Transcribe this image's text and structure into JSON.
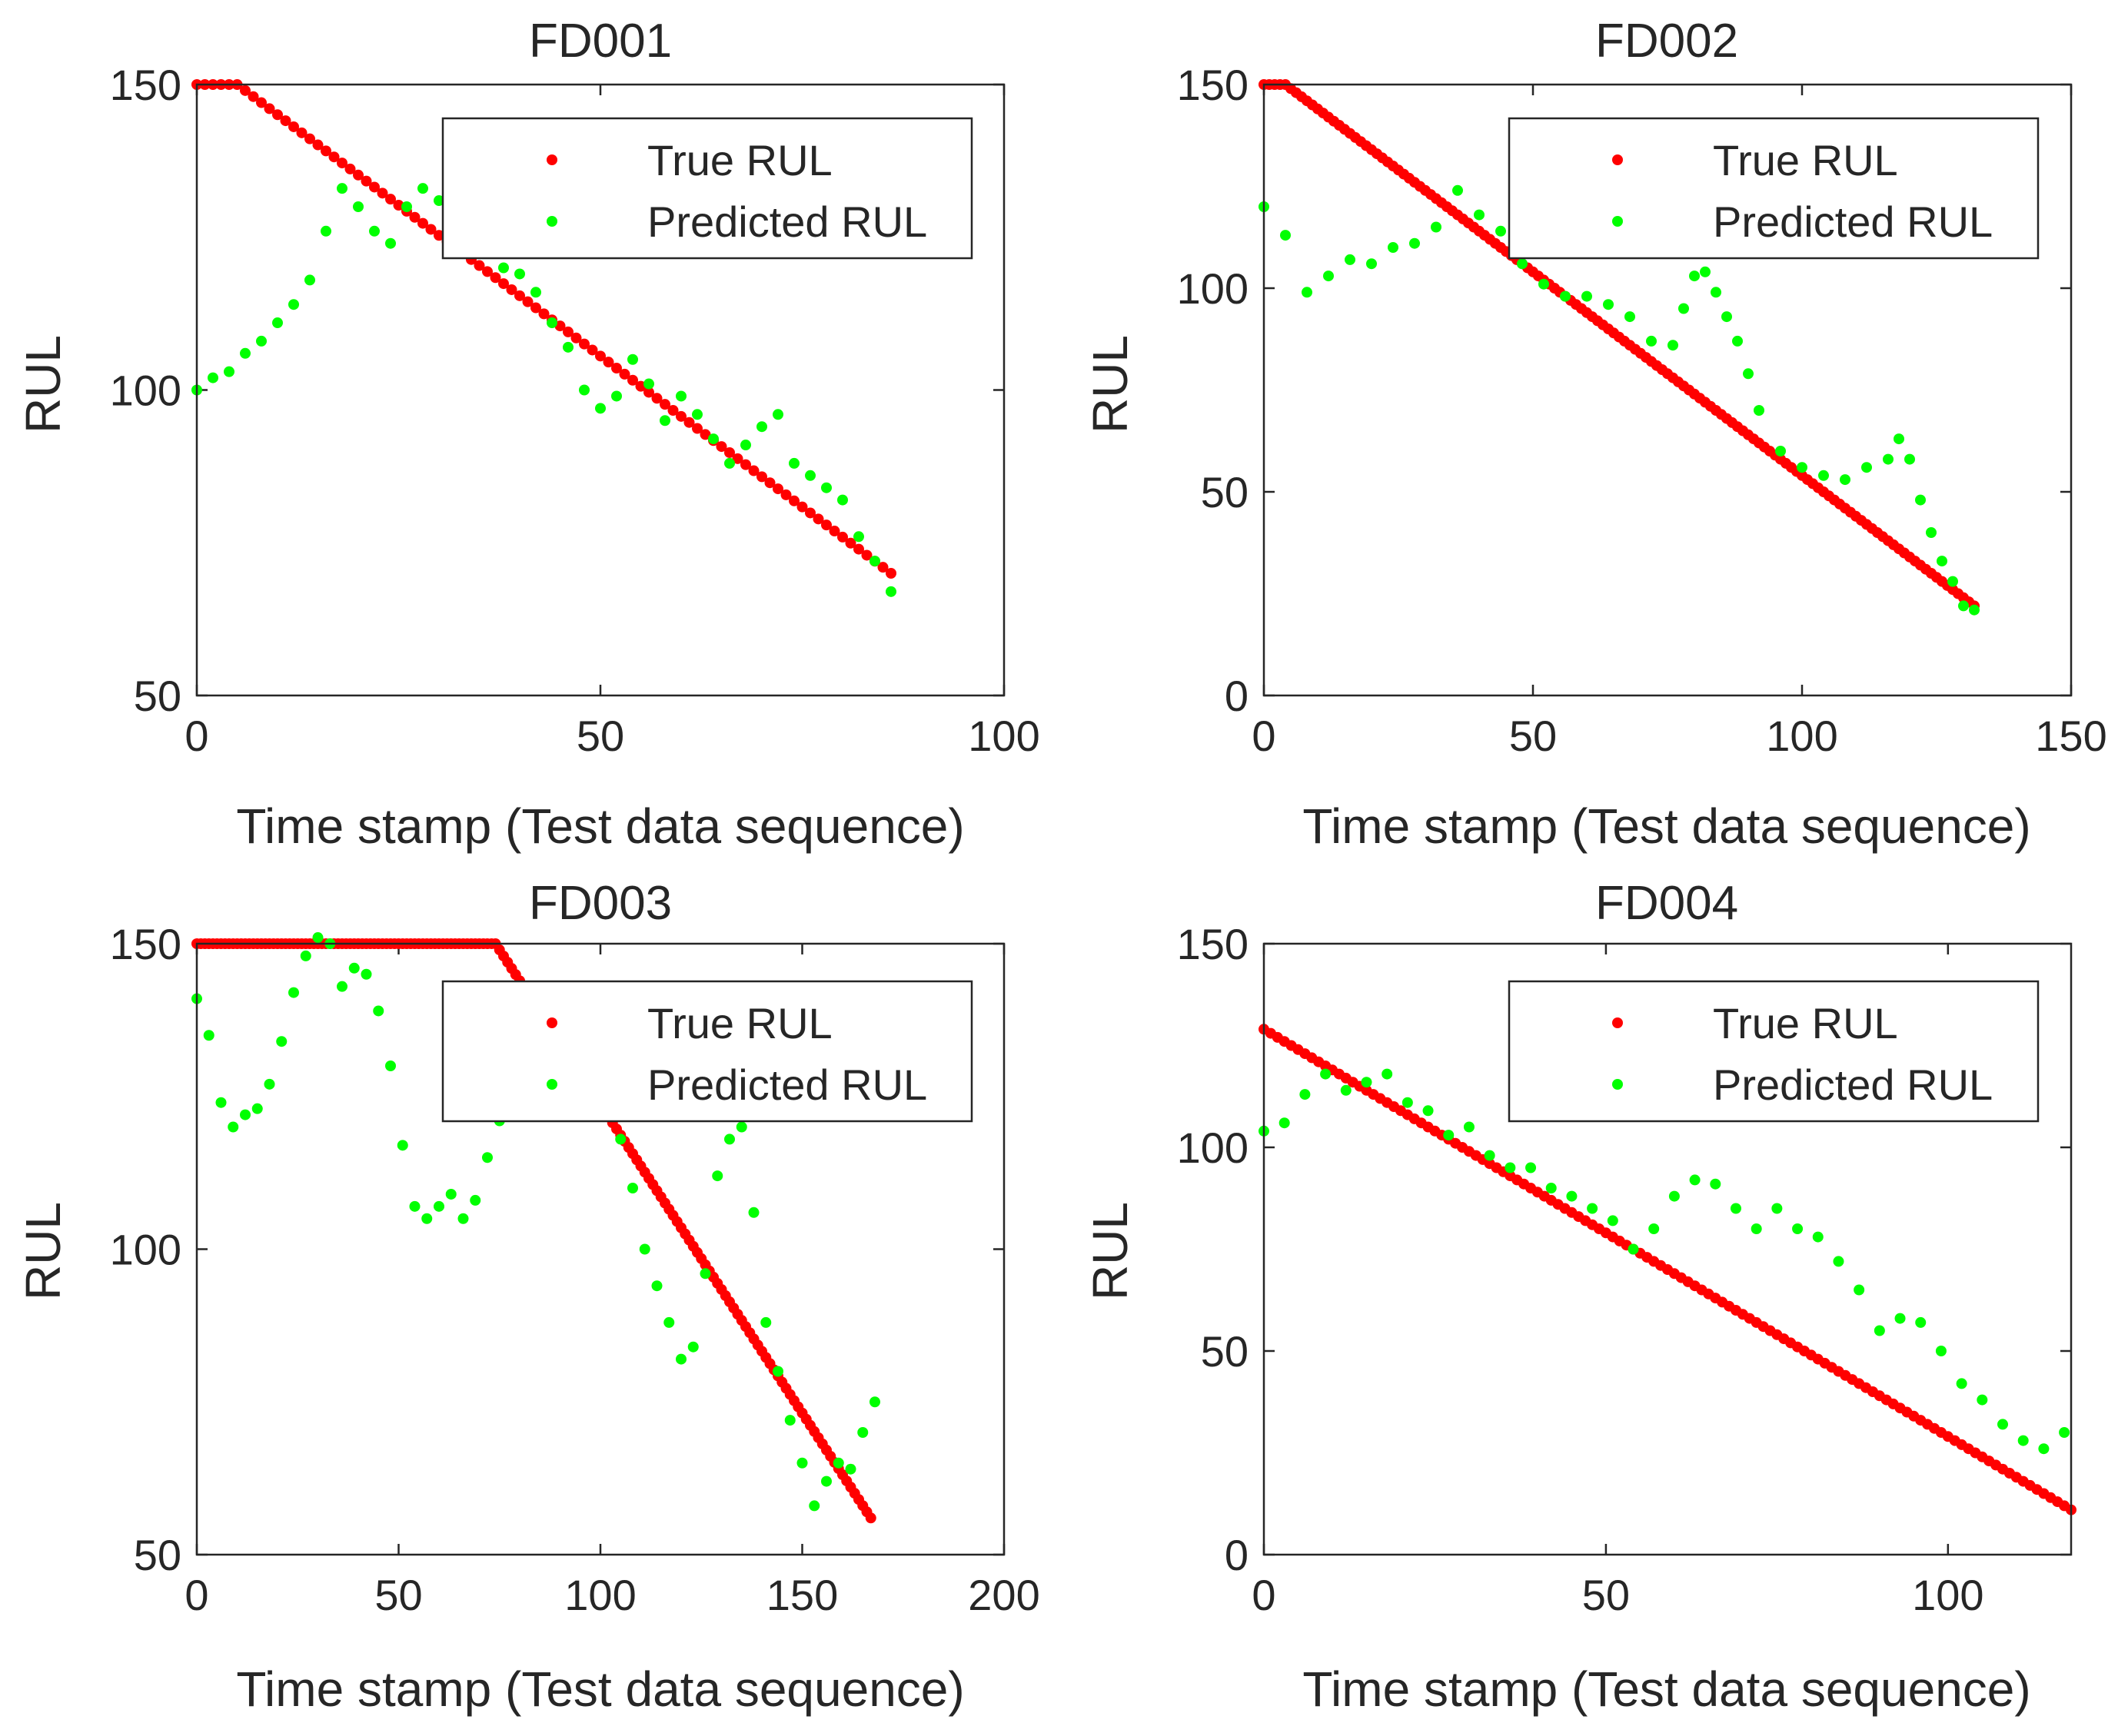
{
  "colors": {
    "true_rul": "#ff0000",
    "pred_rul": "#00ff00",
    "axis": "#262626"
  },
  "chart_data": [
    {
      "type": "scatter",
      "title": "FD001",
      "xlabel": "Time stamp (Test data sequence)",
      "ylabel": "RUL",
      "xlim": [
        0,
        100
      ],
      "ylim": [
        50,
        150
      ],
      "xticks": [
        0,
        50,
        100
      ],
      "yticks": [
        50,
        100,
        150
      ],
      "legend": {
        "entries": [
          "True RUL",
          "Predicted RUL"
        ],
        "location": "top-right"
      },
      "true_rul": {
        "x_end": 86,
        "cap": 150,
        "knee": 5,
        "end_value": 70
      },
      "predicted_rul": {
        "x": [
          0,
          2,
          4,
          6,
          8,
          10,
          12,
          14,
          16,
          18,
          20,
          22,
          24,
          26,
          28,
          30,
          32,
          34,
          36,
          38,
          40,
          42,
          44,
          46,
          48,
          50,
          52,
          54,
          56,
          58,
          60,
          62,
          64,
          66,
          68,
          70,
          72,
          74,
          76,
          78,
          80,
          82,
          84,
          86
        ],
        "y": [
          100,
          102,
          103,
          106,
          108,
          111,
          114,
          118,
          126,
          133,
          130,
          126,
          124,
          130,
          133,
          131,
          128,
          125,
          124,
          120,
          119,
          116,
          111,
          107,
          100,
          97,
          99,
          105,
          101,
          95,
          99,
          96,
          92,
          88,
          91,
          94,
          96,
          88,
          86,
          84,
          82,
          76,
          72,
          67
        ]
      }
    },
    {
      "type": "scatter",
      "title": "FD002",
      "xlabel": "Time stamp (Test data sequence)",
      "ylabel": "RUL",
      "xlim": [
        0,
        150
      ],
      "ylim": [
        0,
        150
      ],
      "xticks": [
        0,
        50,
        100,
        150
      ],
      "yticks": [
        0,
        50,
        100,
        150
      ],
      "legend": {
        "entries": [
          "True RUL",
          "Predicted RUL"
        ],
        "location": "top-right"
      },
      "true_rul": {
        "x_end": 132,
        "cap": 150,
        "knee": 4,
        "end_value": 22
      },
      "predicted_rul": {
        "x": [
          0,
          4,
          8,
          12,
          16,
          20,
          24,
          28,
          32,
          36,
          40,
          44,
          48,
          52,
          56,
          60,
          64,
          68,
          72,
          76,
          78,
          80,
          82,
          84,
          86,
          88,
          90,
          92,
          96,
          100,
          104,
          108,
          112,
          116,
          118,
          120,
          122,
          124,
          126,
          128,
          130,
          132
        ],
        "y": [
          120,
          113,
          99,
          103,
          107,
          106,
          110,
          111,
          115,
          124,
          118,
          114,
          106,
          101,
          98,
          98,
          96,
          93,
          87,
          86,
          95,
          103,
          104,
          99,
          93,
          87,
          79,
          70,
          60,
          56,
          54,
          53,
          56,
          58,
          63,
          58,
          48,
          40,
          33,
          28,
          22,
          21
        ]
      }
    },
    {
      "type": "scatter",
      "title": "FD003",
      "xlabel": "Time stamp (Test data sequence)",
      "ylabel": "RUL",
      "xlim": [
        0,
        200
      ],
      "ylim": [
        50,
        150
      ],
      "xticks": [
        0,
        50,
        100,
        150,
        200
      ],
      "yticks": [
        50,
        100,
        150
      ],
      "legend": {
        "entries": [
          "True RUL",
          "Predicted RUL"
        ],
        "location": "top-right"
      },
      "true_rul": {
        "x_end": 167,
        "cap": 150,
        "knee": 74,
        "end_value": 56
      },
      "predicted_rul": {
        "x": [
          0,
          3,
          6,
          9,
          12,
          15,
          18,
          21,
          24,
          27,
          30,
          33,
          36,
          39,
          42,
          45,
          48,
          51,
          54,
          57,
          60,
          63,
          66,
          69,
          72,
          75,
          105,
          108,
          111,
          114,
          117,
          120,
          123,
          126,
          129,
          132,
          135,
          138,
          141,
          144,
          147,
          150,
          153,
          156,
          159,
          162,
          165,
          168
        ],
        "y": [
          141,
          135,
          124,
          120,
          122,
          123,
          127,
          134,
          142,
          148,
          151,
          150,
          143,
          146,
          145,
          139,
          130,
          117,
          107,
          105,
          107,
          109,
          105,
          108,
          115,
          121,
          118,
          110,
          100,
          94,
          88,
          82,
          84,
          96,
          112,
          118,
          120,
          106,
          88,
          80,
          72,
          65,
          58,
          62,
          65,
          64,
          70,
          75
        ]
      }
    },
    {
      "type": "scatter",
      "title": "FD004",
      "xlabel": "Time stamp (Test data sequence)",
      "ylabel": "RUL",
      "xlim": [
        0,
        118
      ],
      "ylim": [
        0,
        150
      ],
      "xticks": [
        0,
        50,
        100
      ],
      "yticks": [
        0,
        50,
        100,
        150
      ],
      "legend": {
        "entries": [
          "True RUL",
          "Predicted RUL"
        ],
        "location": "top-right"
      },
      "true_rul": {
        "x_end": 118,
        "cap": 129,
        "knee": 0,
        "end_value": 11
      },
      "predicted_rul": {
        "x": [
          0,
          3,
          6,
          9,
          12,
          15,
          18,
          21,
          24,
          27,
          30,
          33,
          36,
          39,
          42,
          45,
          48,
          51,
          54,
          57,
          60,
          63,
          66,
          69,
          72,
          75,
          78,
          81,
          84,
          87,
          90,
          93,
          96,
          99,
          102,
          105,
          108,
          111,
          114,
          117
        ],
        "y": [
          104,
          106,
          113,
          118,
          114,
          116,
          118,
          111,
          109,
          103,
          105,
          98,
          95,
          95,
          90,
          88,
          85,
          82,
          75,
          80,
          88,
          92,
          91,
          85,
          80,
          85,
          80,
          78,
          72,
          65,
          55,
          58,
          57,
          50,
          42,
          38,
          32,
          28,
          26,
          30
        ]
      }
    }
  ]
}
